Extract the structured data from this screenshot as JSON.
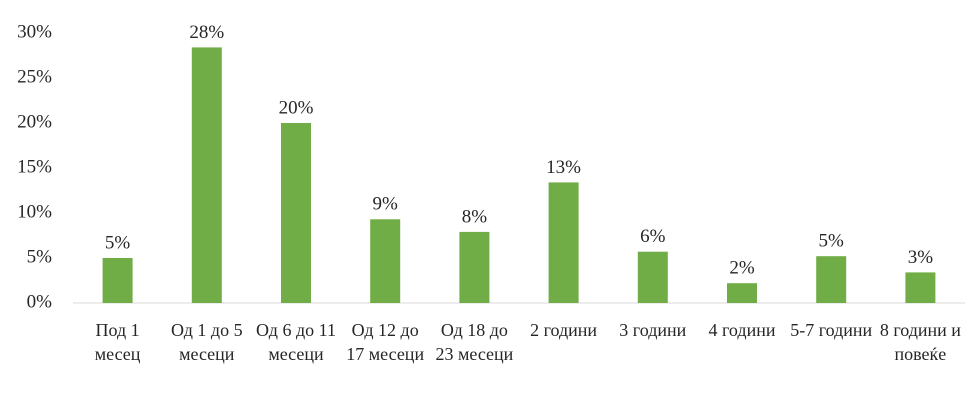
{
  "chart_data": {
    "type": "bar",
    "categories": [
      "Под 1 месец",
      "Од 1 до 5 месеци",
      "Од 6 до 11 месеци",
      "Од 12 до 17 месеци",
      "Од 18 до 23 месеци",
      "2 години",
      "3 години",
      "4 години",
      "5-7 години",
      "8 години и повеќе"
    ],
    "values": [
      5.0,
      28.4,
      20.0,
      9.3,
      7.9,
      13.4,
      5.7,
      2.2,
      5.2,
      3.4
    ],
    "value_labels": [
      "5%",
      "28%",
      "20%",
      "9%",
      "8%",
      "13%",
      "6%",
      "2%",
      "5%",
      "3%"
    ],
    "color": "#70ad47",
    "ylim": [
      0,
      30
    ],
    "yticks": [
      {
        "value": 0,
        "label": "0%"
      },
      {
        "value": 5,
        "label": "5%"
      },
      {
        "value": 10,
        "label": "10%"
      },
      {
        "value": 15,
        "label": "15%"
      },
      {
        "value": 20,
        "label": "20%"
      },
      {
        "value": 25,
        "label": "25%"
      },
      {
        "value": 30,
        "label": "30%"
      }
    ],
    "grid": false
  }
}
